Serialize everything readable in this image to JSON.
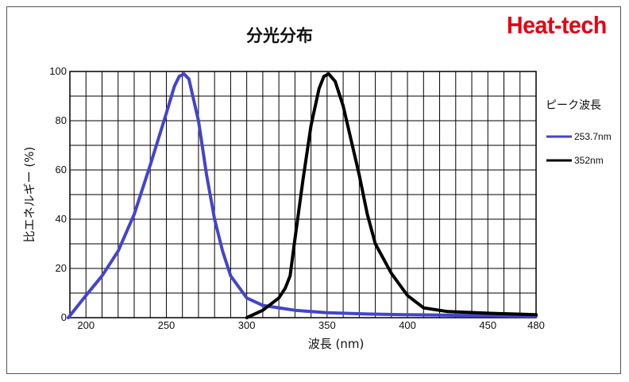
{
  "brand": {
    "text": "Heat-tech",
    "color": "#e60012"
  },
  "chart_data": {
    "type": "line",
    "title": "分光分布",
    "xlabel": "波長 (nm)",
    "ylabel": "比エネルギー (%)",
    "xlim": [
      190,
      480
    ],
    "ylim": [
      0,
      100
    ],
    "x_ticks": [
      200,
      250,
      300,
      350,
      400,
      450,
      480
    ],
    "y_ticks": [
      0,
      20,
      40,
      60,
      80,
      100
    ],
    "grid": true,
    "legend": {
      "title": "ピーク波長",
      "position": "right",
      "items": [
        "253.7nm",
        "352nm"
      ]
    },
    "series": [
      {
        "name": "253.7nm",
        "color": "#4444cc",
        "points": [
          [
            189,
            0
          ],
          [
            200,
            9
          ],
          [
            210,
            17
          ],
          [
            220,
            27
          ],
          [
            230,
            42
          ],
          [
            240,
            62
          ],
          [
            250,
            83
          ],
          [
            255,
            94
          ],
          [
            258,
            98
          ],
          [
            261,
            99
          ],
          [
            264,
            97
          ],
          [
            270,
            80
          ],
          [
            275,
            58
          ],
          [
            280,
            40
          ],
          [
            285,
            27
          ],
          [
            290,
            17
          ],
          [
            300,
            8
          ],
          [
            310,
            5
          ],
          [
            320,
            4
          ],
          [
            330,
            3
          ],
          [
            340,
            2.5
          ],
          [
            350,
            2
          ],
          [
            375,
            1.5
          ],
          [
            400,
            1.2
          ],
          [
            425,
            1
          ],
          [
            450,
            0.8
          ],
          [
            480,
            0.6
          ]
        ]
      },
      {
        "name": "352nm",
        "color": "#000000",
        "points": [
          [
            300,
            0
          ],
          [
            310,
            3
          ],
          [
            320,
            8
          ],
          [
            324,
            12
          ],
          [
            327,
            17
          ],
          [
            330,
            32
          ],
          [
            335,
            56
          ],
          [
            340,
            78
          ],
          [
            345,
            93
          ],
          [
            348,
            98
          ],
          [
            351,
            99
          ],
          [
            355,
            96
          ],
          [
            360,
            86
          ],
          [
            365,
            72
          ],
          [
            370,
            58
          ],
          [
            375,
            42
          ],
          [
            380,
            30
          ],
          [
            390,
            18
          ],
          [
            400,
            9
          ],
          [
            410,
            4
          ],
          [
            425,
            2.5
          ],
          [
            450,
            1.8
          ],
          [
            480,
            1.2
          ]
        ]
      }
    ]
  }
}
